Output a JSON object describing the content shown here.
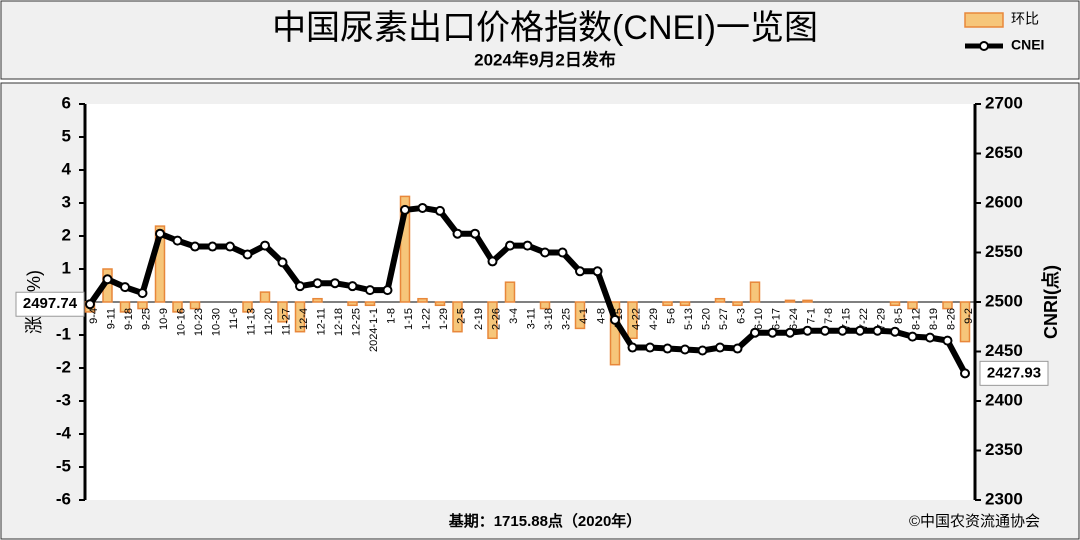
{
  "chart_data": {
    "type": "combo",
    "title": "中国尿素出口价格指数(CNEI)一览图",
    "subtitle": "2024年9月2日发布",
    "ylabel": "涨跌(%)",
    "y2label": "CNRI(点)",
    "base_note": "基期：1715.88点（2020年）",
    "source": "©中国农资流通协会",
    "categories": [
      "9-4",
      "9-11",
      "9-18",
      "9-25",
      "10-9",
      "10-16",
      "10-23",
      "10-30",
      "11-6",
      "11-13",
      "11-20",
      "11-27",
      "12-4",
      "12-11",
      "12-18",
      "12-25",
      "2024-1-1",
      "1-8",
      "1-15",
      "1-22",
      "1-29",
      "2-5",
      "2-19",
      "2-26",
      "3-4",
      "3-11",
      "3-18",
      "3-25",
      "4-1",
      "4-8",
      "4-15",
      "4-22",
      "4-29",
      "5-6",
      "5-13",
      "5-20",
      "5-27",
      "6-3",
      "6-10",
      "6-17",
      "6-24",
      "7-1",
      "7-8",
      "7-15",
      "7-22",
      "7-29",
      "8-5",
      "8-12",
      "8-19",
      "8-26",
      "9-2"
    ],
    "series": [
      {
        "name": "环比",
        "type": "bar",
        "color": "#f6c67a",
        "stroke": "#e8873a",
        "values": [
          -0.3,
          1.0,
          -0.3,
          -0.2,
          2.3,
          -0.3,
          -0.2,
          0,
          0,
          -0.3,
          0.3,
          -0.6,
          -0.9,
          0.1,
          0,
          -0.1,
          -0.1,
          0,
          3.2,
          0.1,
          -0.1,
          -0.9,
          0,
          -1.1,
          0.6,
          0,
          -0.2,
          0,
          -0.8,
          0,
          -1.9,
          -1.1,
          0,
          -0.1,
          -0.1,
          0,
          0.1,
          -0.1,
          0.6,
          0,
          0.05,
          0.05,
          0,
          0,
          0,
          0,
          -0.1,
          -0.2,
          0,
          -0.2,
          -1.2
        ]
      },
      {
        "name": "CNEI",
        "type": "line",
        "axis": "y2",
        "color": "#000000",
        "values": [
          2497.74,
          2523,
          2515,
          2509,
          2569,
          2562,
          2556,
          2556,
          2556,
          2548,
          2557,
          2540,
          2516,
          2519,
          2519,
          2516,
          2512,
          2512,
          2593,
          2595,
          2592,
          2569,
          2569,
          2541,
          2557,
          2557,
          2550,
          2550,
          2531,
          2531,
          2482,
          2454,
          2454,
          2453,
          2452,
          2451,
          2454,
          2453,
          2469,
          2469,
          2469,
          2471,
          2471,
          2471,
          2471,
          2471,
          2470,
          2465,
          2464,
          2461,
          2427.93
        ]
      }
    ],
    "ylim": [
      -6,
      6
    ],
    "yticks": [
      -6,
      -5,
      -4,
      -3,
      -2,
      -1,
      0,
      1,
      2,
      3,
      4,
      5,
      6
    ],
    "y2lim": [
      2300,
      2700
    ],
    "y2ticks": [
      2300,
      2350,
      2400,
      2450,
      2500,
      2550,
      2600,
      2650,
      2700
    ],
    "grid": false,
    "legend": "top-right"
  }
}
